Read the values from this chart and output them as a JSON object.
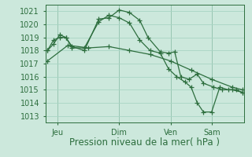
{
  "bg_color": "#cce8dc",
  "grid_color": "#a8d4c4",
  "line_color": "#2d6e3e",
  "xlabel": "Pression niveau de la mer( hPa )",
  "xlabel_fontsize": 8.5,
  "tick_fontsize": 7,
  "ylim": [
    1012.5,
    1021.5
  ],
  "yticks": [
    1013,
    1014,
    1015,
    1016,
    1017,
    1018,
    1019,
    1020,
    1021
  ],
  "day_labels": [
    "Jeu",
    "Dim",
    "Ven",
    "Sam"
  ],
  "day_positions": [
    0.5,
    3.5,
    6.0,
    8.0
  ],
  "vline_positions": [
    0.5,
    3.5,
    6.0,
    8.0
  ],
  "xlim": [
    -0.1,
    9.6
  ],
  "series1_x": [
    0.0,
    0.3,
    0.6,
    0.9,
    1.2,
    1.8,
    2.5,
    3.0,
    3.5,
    4.0,
    4.5,
    4.9,
    5.5,
    5.9,
    6.2,
    6.5,
    6.9,
    7.3,
    7.6,
    8.1,
    8.5,
    9.0,
    9.5
  ],
  "series1_y": [
    1018.0,
    1018.8,
    1019.0,
    1019.0,
    1018.3,
    1018.0,
    1020.4,
    1020.5,
    1021.1,
    1020.9,
    1020.3,
    1019.0,
    1017.9,
    1017.8,
    1017.9,
    1016.0,
    1015.8,
    1016.2,
    1015.5,
    1015.2,
    1015.0,
    1015.0,
    1014.8
  ],
  "series2_x": [
    0.0,
    0.3,
    0.6,
    0.9,
    1.2,
    1.8,
    2.5,
    3.0,
    3.5,
    4.0,
    4.5,
    5.0,
    5.5,
    5.9,
    6.3,
    6.7,
    7.0,
    7.3,
    7.6,
    8.0,
    8.4,
    8.8,
    9.2,
    9.5
  ],
  "series2_y": [
    1018.0,
    1018.5,
    1019.2,
    1019.0,
    1018.2,
    1018.2,
    1020.2,
    1020.7,
    1020.5,
    1020.1,
    1018.8,
    1018.0,
    1017.8,
    1016.6,
    1016.0,
    1015.6,
    1015.2,
    1014.0,
    1013.3,
    1013.3,
    1015.2,
    1015.0,
    1015.0,
    1014.8
  ],
  "series3_x": [
    0.0,
    1.0,
    2.0,
    3.0,
    4.0,
    5.0,
    6.0,
    7.0,
    8.0,
    9.0,
    9.5
  ],
  "series3_y": [
    1017.2,
    1018.4,
    1018.2,
    1018.3,
    1018.0,
    1017.7,
    1017.2,
    1016.5,
    1015.8,
    1015.2,
    1015.0
  ]
}
